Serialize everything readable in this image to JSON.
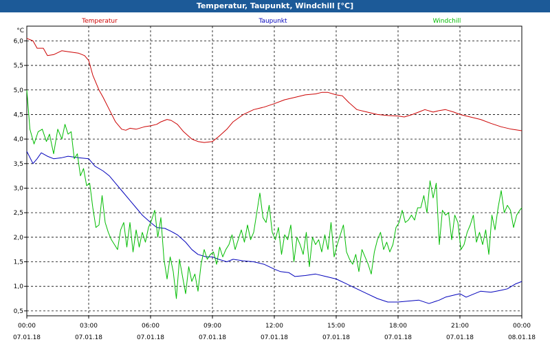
{
  "window": {
    "title": "Temperatur, Taupunkt, Windchill [°C]"
  },
  "chart_data": {
    "type": "line",
    "title": "Temperatur, Taupunkt, Windchill [°C]",
    "unit_label": "°C",
    "xlabel": "",
    "ylabel": "°C",
    "xlim": [
      0,
      24
    ],
    "ylim": [
      0.4,
      6.3
    ],
    "grid": true,
    "legend_position": "top",
    "x_ticks": [
      {
        "hour": 0,
        "time": "00:00",
        "date": "07.01.18"
      },
      {
        "hour": 3,
        "time": "03:00",
        "date": "07.01.18"
      },
      {
        "hour": 6,
        "time": "06:00",
        "date": "07.01.18"
      },
      {
        "hour": 9,
        "time": "09:00",
        "date": "07.01.18"
      },
      {
        "hour": 12,
        "time": "12:00",
        "date": "07.01.18"
      },
      {
        "hour": 15,
        "time": "15:00",
        "date": "07.01.18"
      },
      {
        "hour": 18,
        "time": "18:00",
        "date": "07.01.18"
      },
      {
        "hour": 21,
        "time": "21:00",
        "date": "07.01.18"
      },
      {
        "hour": 24,
        "time": "00:00",
        "date": "08.01.18"
      }
    ],
    "y_ticks": [
      "0,5",
      "1,0",
      "1,5",
      "2,0",
      "2,5",
      "3,0",
      "3,5",
      "4,0",
      "4,5",
      "5,0",
      "5,5",
      "6,0"
    ],
    "y_tick_values": [
      0.5,
      1.0,
      1.5,
      2.0,
      2.5,
      3.0,
      3.5,
      4.0,
      4.5,
      5.0,
      5.5,
      6.0
    ],
    "series": [
      {
        "name": "Temperatur",
        "color": "#cc0000",
        "points": [
          [
            0,
            6.05
          ],
          [
            0.3,
            6.0
          ],
          [
            0.5,
            5.85
          ],
          [
            0.8,
            5.85
          ],
          [
            1.0,
            5.7
          ],
          [
            1.3,
            5.72
          ],
          [
            1.7,
            5.8
          ],
          [
            2.0,
            5.78
          ],
          [
            2.5,
            5.75
          ],
          [
            2.8,
            5.7
          ],
          [
            3.0,
            5.6
          ],
          [
            3.2,
            5.3
          ],
          [
            3.5,
            5.0
          ],
          [
            3.7,
            4.85
          ],
          [
            4.0,
            4.6
          ],
          [
            4.3,
            4.35
          ],
          [
            4.6,
            4.2
          ],
          [
            4.8,
            4.18
          ],
          [
            5.0,
            4.22
          ],
          [
            5.3,
            4.2
          ],
          [
            5.7,
            4.25
          ],
          [
            6.0,
            4.27
          ],
          [
            6.3,
            4.3
          ],
          [
            6.5,
            4.35
          ],
          [
            6.8,
            4.4
          ],
          [
            7.0,
            4.38
          ],
          [
            7.3,
            4.3
          ],
          [
            7.6,
            4.15
          ],
          [
            8.0,
            4.0
          ],
          [
            8.3,
            3.95
          ],
          [
            8.6,
            3.93
          ],
          [
            9.0,
            3.95
          ],
          [
            9.3,
            4.05
          ],
          [
            9.7,
            4.2
          ],
          [
            10.0,
            4.35
          ],
          [
            10.5,
            4.5
          ],
          [
            11.0,
            4.6
          ],
          [
            11.5,
            4.65
          ],
          [
            12.0,
            4.72
          ],
          [
            12.5,
            4.8
          ],
          [
            13.0,
            4.85
          ],
          [
            13.5,
            4.9
          ],
          [
            14.0,
            4.92
          ],
          [
            14.3,
            4.95
          ],
          [
            14.6,
            4.95
          ],
          [
            15.0,
            4.9
          ],
          [
            15.3,
            4.88
          ],
          [
            15.6,
            4.75
          ],
          [
            16.0,
            4.6
          ],
          [
            16.5,
            4.55
          ],
          [
            17.0,
            4.5
          ],
          [
            17.5,
            4.48
          ],
          [
            18.0,
            4.47
          ],
          [
            18.3,
            4.45
          ],
          [
            18.7,
            4.5
          ],
          [
            19.0,
            4.55
          ],
          [
            19.3,
            4.6
          ],
          [
            19.7,
            4.55
          ],
          [
            20.0,
            4.58
          ],
          [
            20.3,
            4.6
          ],
          [
            20.7,
            4.55
          ],
          [
            21.0,
            4.5
          ],
          [
            21.5,
            4.45
          ],
          [
            22.0,
            4.4
          ],
          [
            22.5,
            4.32
          ],
          [
            23.0,
            4.25
          ],
          [
            23.5,
            4.2
          ],
          [
            24.0,
            4.17
          ]
        ]
      },
      {
        "name": "Taupunkt",
        "color": "#0000bb",
        "points": [
          [
            0,
            3.75
          ],
          [
            0.3,
            3.5
          ],
          [
            0.5,
            3.6
          ],
          [
            0.7,
            3.72
          ],
          [
            1.0,
            3.65
          ],
          [
            1.3,
            3.6
          ],
          [
            1.7,
            3.62
          ],
          [
            2.0,
            3.65
          ],
          [
            2.5,
            3.62
          ],
          [
            3.0,
            3.6
          ],
          [
            3.3,
            3.45
          ],
          [
            3.7,
            3.35
          ],
          [
            4.0,
            3.25
          ],
          [
            4.3,
            3.1
          ],
          [
            4.6,
            2.95
          ],
          [
            5.0,
            2.75
          ],
          [
            5.3,
            2.6
          ],
          [
            5.6,
            2.45
          ],
          [
            6.0,
            2.3
          ],
          [
            6.3,
            2.2
          ],
          [
            6.7,
            2.18
          ],
          [
            7.0,
            2.12
          ],
          [
            7.3,
            2.05
          ],
          [
            7.7,
            1.9
          ],
          [
            8.0,
            1.75
          ],
          [
            8.3,
            1.65
          ],
          [
            8.7,
            1.6
          ],
          [
            9.0,
            1.6
          ],
          [
            9.3,
            1.55
          ],
          [
            9.7,
            1.5
          ],
          [
            10.0,
            1.55
          ],
          [
            10.5,
            1.52
          ],
          [
            11.0,
            1.5
          ],
          [
            11.5,
            1.45
          ],
          [
            12.0,
            1.35
          ],
          [
            12.3,
            1.3
          ],
          [
            12.7,
            1.28
          ],
          [
            13.0,
            1.2
          ],
          [
            13.5,
            1.22
          ],
          [
            14.0,
            1.25
          ],
          [
            14.5,
            1.2
          ],
          [
            15.0,
            1.15
          ],
          [
            15.5,
            1.05
          ],
          [
            16.0,
            0.95
          ],
          [
            16.5,
            0.85
          ],
          [
            17.0,
            0.75
          ],
          [
            17.5,
            0.68
          ],
          [
            18.0,
            0.68
          ],
          [
            18.5,
            0.7
          ],
          [
            19.0,
            0.72
          ],
          [
            19.5,
            0.65
          ],
          [
            20.0,
            0.72
          ],
          [
            20.3,
            0.78
          ],
          [
            20.7,
            0.82
          ],
          [
            21.0,
            0.85
          ],
          [
            21.3,
            0.78
          ],
          [
            21.7,
            0.85
          ],
          [
            22.0,
            0.9
          ],
          [
            22.5,
            0.88
          ],
          [
            23.0,
            0.92
          ],
          [
            23.3,
            0.95
          ],
          [
            23.7,
            1.05
          ],
          [
            24.0,
            1.1
          ]
        ]
      },
      {
        "name": "Windchill",
        "color": "#00bb00",
        "points": [
          [
            0,
            5.0
          ],
          [
            0.15,
            4.2
          ],
          [
            0.35,
            3.9
          ],
          [
            0.55,
            4.15
          ],
          [
            0.75,
            4.2
          ],
          [
            0.95,
            3.95
          ],
          [
            1.1,
            4.1
          ],
          [
            1.3,
            3.7
          ],
          [
            1.5,
            4.2
          ],
          [
            1.7,
            4.0
          ],
          [
            1.85,
            4.3
          ],
          [
            2.0,
            4.1
          ],
          [
            2.15,
            4.15
          ],
          [
            2.3,
            3.6
          ],
          [
            2.45,
            3.7
          ],
          [
            2.6,
            3.25
          ],
          [
            2.75,
            3.4
          ],
          [
            2.9,
            3.05
          ],
          [
            3.05,
            3.1
          ],
          [
            3.2,
            2.6
          ],
          [
            3.35,
            2.2
          ],
          [
            3.5,
            2.25
          ],
          [
            3.65,
            2.85
          ],
          [
            3.8,
            2.3
          ],
          [
            3.95,
            2.1
          ],
          [
            4.1,
            1.95
          ],
          [
            4.25,
            1.85
          ],
          [
            4.4,
            1.75
          ],
          [
            4.55,
            2.15
          ],
          [
            4.7,
            2.3
          ],
          [
            4.85,
            1.8
          ],
          [
            5.0,
            2.3
          ],
          [
            5.15,
            1.7
          ],
          [
            5.3,
            2.15
          ],
          [
            5.45,
            1.8
          ],
          [
            5.6,
            2.1
          ],
          [
            5.75,
            1.9
          ],
          [
            5.9,
            2.2
          ],
          [
            6.05,
            2.35
          ],
          [
            6.2,
            2.55
          ],
          [
            6.35,
            2.0
          ],
          [
            6.5,
            2.4
          ],
          [
            6.65,
            1.55
          ],
          [
            6.8,
            1.15
          ],
          [
            6.95,
            1.6
          ],
          [
            7.1,
            1.3
          ],
          [
            7.25,
            0.75
          ],
          [
            7.4,
            1.55
          ],
          [
            7.55,
            1.2
          ],
          [
            7.7,
            0.85
          ],
          [
            7.85,
            1.4
          ],
          [
            8.0,
            1.1
          ],
          [
            8.15,
            1.25
          ],
          [
            8.3,
            0.9
          ],
          [
            8.45,
            1.45
          ],
          [
            8.6,
            1.75
          ],
          [
            8.75,
            1.55
          ],
          [
            8.9,
            1.65
          ],
          [
            9.05,
            1.7
          ],
          [
            9.2,
            1.45
          ],
          [
            9.35,
            1.8
          ],
          [
            9.5,
            1.6
          ],
          [
            9.65,
            1.75
          ],
          [
            9.8,
            1.85
          ],
          [
            9.95,
            2.05
          ],
          [
            10.1,
            1.75
          ],
          [
            10.25,
            1.95
          ],
          [
            10.4,
            2.15
          ],
          [
            10.55,
            1.9
          ],
          [
            10.7,
            2.25
          ],
          [
            10.85,
            1.95
          ],
          [
            11.0,
            2.1
          ],
          [
            11.15,
            2.5
          ],
          [
            11.3,
            2.9
          ],
          [
            11.45,
            2.4
          ],
          [
            11.6,
            2.3
          ],
          [
            11.75,
            2.65
          ],
          [
            11.9,
            2.1
          ],
          [
            12.05,
            1.95
          ],
          [
            12.2,
            2.2
          ],
          [
            12.35,
            1.65
          ],
          [
            12.5,
            2.05
          ],
          [
            12.65,
            1.95
          ],
          [
            12.8,
            2.25
          ],
          [
            12.95,
            1.5
          ],
          [
            13.1,
            2.0
          ],
          [
            13.25,
            1.85
          ],
          [
            13.4,
            1.65
          ],
          [
            13.55,
            2.1
          ],
          [
            13.7,
            1.4
          ],
          [
            13.85,
            2.0
          ],
          [
            14.0,
            1.85
          ],
          [
            14.15,
            1.95
          ],
          [
            14.3,
            1.7
          ],
          [
            14.45,
            2.05
          ],
          [
            14.6,
            1.75
          ],
          [
            14.75,
            2.3
          ],
          [
            14.9,
            1.6
          ],
          [
            15.05,
            1.85
          ],
          [
            15.2,
            2.05
          ],
          [
            15.35,
            2.25
          ],
          [
            15.5,
            1.7
          ],
          [
            15.65,
            1.55
          ],
          [
            15.8,
            1.45
          ],
          [
            15.95,
            1.65
          ],
          [
            16.1,
            1.3
          ],
          [
            16.25,
            1.75
          ],
          [
            16.4,
            1.6
          ],
          [
            16.55,
            1.45
          ],
          [
            16.7,
            1.25
          ],
          [
            16.85,
            1.7
          ],
          [
            17.0,
            1.95
          ],
          [
            17.15,
            2.1
          ],
          [
            17.3,
            1.75
          ],
          [
            17.45,
            1.9
          ],
          [
            17.6,
            1.7
          ],
          [
            17.75,
            1.85
          ],
          [
            17.9,
            2.2
          ],
          [
            18.05,
            2.3
          ],
          [
            18.2,
            2.55
          ],
          [
            18.35,
            2.3
          ],
          [
            18.5,
            2.35
          ],
          [
            18.65,
            2.45
          ],
          [
            18.8,
            2.35
          ],
          [
            18.95,
            2.6
          ],
          [
            19.1,
            2.6
          ],
          [
            19.25,
            2.85
          ],
          [
            19.4,
            2.5
          ],
          [
            19.55,
            3.15
          ],
          [
            19.7,
            2.8
          ],
          [
            19.85,
            3.1
          ],
          [
            20.0,
            1.85
          ],
          [
            20.15,
            2.55
          ],
          [
            20.3,
            2.45
          ],
          [
            20.45,
            2.5
          ],
          [
            20.6,
            1.95
          ],
          [
            20.75,
            2.45
          ],
          [
            20.9,
            2.3
          ],
          [
            21.05,
            1.75
          ],
          [
            21.2,
            1.85
          ],
          [
            21.35,
            2.1
          ],
          [
            21.5,
            2.25
          ],
          [
            21.65,
            2.45
          ],
          [
            21.8,
            1.9
          ],
          [
            21.95,
            2.1
          ],
          [
            22.1,
            1.85
          ],
          [
            22.25,
            2.15
          ],
          [
            22.4,
            1.65
          ],
          [
            22.55,
            2.45
          ],
          [
            22.7,
            2.15
          ],
          [
            22.85,
            2.6
          ],
          [
            23.0,
            2.95
          ],
          [
            23.15,
            2.5
          ],
          [
            23.3,
            2.65
          ],
          [
            23.45,
            2.55
          ],
          [
            23.6,
            2.2
          ],
          [
            23.75,
            2.45
          ],
          [
            23.9,
            2.55
          ],
          [
            24.0,
            2.6
          ]
        ]
      }
    ]
  }
}
